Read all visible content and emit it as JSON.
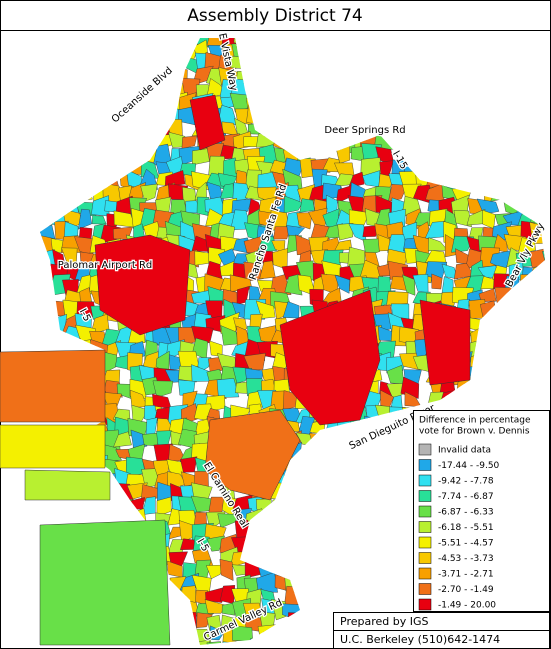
{
  "title": "Assembly District 74",
  "roads": [
    "E Vista Way",
    "Oceanside Blvd",
    "Deer Springs Rd",
    "I-15",
    "Palomar Airport Rd",
    "I-5",
    "Rancho Santa Fe Rd",
    "Bear Vly Pkwy",
    "San Dieguito River",
    "El Camino Real",
    "I-5",
    "Carmel Valley Rd"
  ],
  "legend": {
    "title_lines": [
      "Difference in percentage",
      "vote for Brown v. Dennis"
    ],
    "items": [
      {
        "label": "Invalid data",
        "color": "#b4b4b4"
      },
      {
        "label": "-17.44 -  -9.50",
        "color": "#20a8e8"
      },
      {
        "label": "-9.42 -  -7.78",
        "color": "#30e0f0"
      },
      {
        "label": "-7.74 -  -6.87",
        "color": "#28e098"
      },
      {
        "label": "-6.87 -  -6.33",
        "color": "#68e048"
      },
      {
        "label": "-6.18 -  -5.51",
        "color": "#b8f030"
      },
      {
        "label": "-5.51 -  -4.57",
        "color": "#f4f000"
      },
      {
        "label": "-4.53 -  -3.73",
        "color": "#f8c800"
      },
      {
        "label": "-3.71 -  -2.71",
        "color": "#f8a000"
      },
      {
        "label": "-2.70 -  -1.49",
        "color": "#f07018"
      },
      {
        "label": "-1.49 -  20.00",
        "color": "#e80010"
      }
    ]
  },
  "footer": {
    "lines": [
      "Prepared by IGS",
      "U.C. Berkeley (510)642-1474"
    ]
  }
}
